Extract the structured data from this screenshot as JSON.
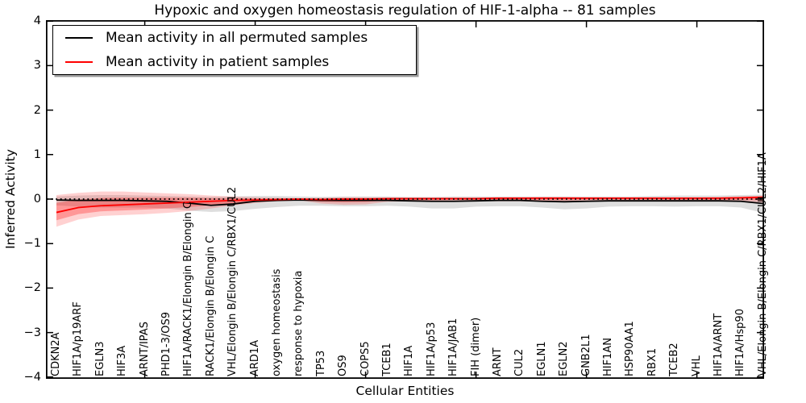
{
  "title": "Hypoxic and oxygen homeostasis regulation of HIF-1-alpha -- 81 samples",
  "legend": {
    "items": [
      {
        "label": "Mean activity in all permuted samples",
        "color": "#000000"
      },
      {
        "label": "Mean activity in patient samples",
        "color": "#ff0000"
      }
    ],
    "position": "upper left"
  },
  "chart_data": {
    "type": "line",
    "title": "Hypoxic and oxygen homeostasis regulation of HIF-1-alpha -- 81 samples",
    "xlabel": "Cellular Entities",
    "ylabel": "Inferred Activity",
    "ylim": [
      -4,
      4
    ],
    "yticks": [
      4,
      3,
      2,
      1,
      0,
      -1,
      -2,
      -3,
      -4
    ],
    "grid": false,
    "zero_line": {
      "style": "dotted",
      "color": "#000000",
      "y": 0
    },
    "categories": [
      "CDKN2A",
      "HIF1A/p19ARF",
      "EGLN3",
      "HIF3A",
      "ARNT/IPAS",
      "PHD1-3/OS9",
      "HIF1A/RACK1/Elongin B/Elongin C",
      "RACK1/Elongin B/Elongin C",
      "VHL/Elongin B/Elongin C/RBX1/CUL2",
      "ARD1A",
      "oxygen homeostasis",
      "response to hypoxia",
      "TP53",
      "OS9",
      "COPS5",
      "TCEB1",
      "HIF1A",
      "HIF1A/p53",
      "HIF1A/JAB1",
      "FIH (dimer)",
      "ARNT",
      "CUL2",
      "EGLN1",
      "EGLN2",
      "GNB2L1",
      "HIF1AN",
      "HSP90AA1",
      "RBX1",
      "TCEB2",
      "VHL",
      "HIF1A/ARNT",
      "HIF1A/Hsp90",
      "VHL/Elongin B/Elongin C/RBX1/CUL2/HIF1A"
    ],
    "top_tick_indices": [
      4,
      9,
      14,
      19,
      24,
      29
    ],
    "series": [
      {
        "name": "Mean activity in all permuted samples",
        "color": "#000000",
        "band_color": "rgba(0,0,0,0.13)",
        "values": [
          -0.02,
          -0.03,
          -0.03,
          -0.03,
          -0.04,
          -0.05,
          -0.09,
          -0.14,
          -0.11,
          -0.05,
          -0.03,
          -0.02,
          -0.03,
          -0.03,
          -0.03,
          -0.03,
          -0.04,
          -0.05,
          -0.05,
          -0.04,
          -0.03,
          -0.03,
          -0.05,
          -0.06,
          -0.05,
          -0.04,
          -0.04,
          -0.04,
          -0.04,
          -0.04,
          -0.04,
          -0.05,
          -0.1
        ],
        "band_upper": [
          0.06,
          0.08,
          0.09,
          0.09,
          0.08,
          0.07,
          0.06,
          0.05,
          0.06,
          0.07,
          0.07,
          0.06,
          0.05,
          0.06,
          0.06,
          0.06,
          0.05,
          0.05,
          0.06,
          0.06,
          0.06,
          0.06,
          0.06,
          0.06,
          0.06,
          0.06,
          0.06,
          0.07,
          0.08,
          0.08,
          0.08,
          0.09,
          0.1
        ],
        "band_lower": [
          -0.14,
          -0.17,
          -0.19,
          -0.19,
          -0.19,
          -0.21,
          -0.26,
          -0.29,
          -0.27,
          -0.22,
          -0.18,
          -0.15,
          -0.15,
          -0.16,
          -0.16,
          -0.15,
          -0.17,
          -0.21,
          -0.21,
          -0.17,
          -0.16,
          -0.16,
          -0.19,
          -0.23,
          -0.21,
          -0.17,
          -0.16,
          -0.16,
          -0.17,
          -0.16,
          -0.16,
          -0.19,
          -0.31
        ]
      },
      {
        "name": "Mean activity in patient samples",
        "color": "#ff0000",
        "band_color": "rgba(255,0,0,0.18)",
        "band_inner_color": "rgba(255,0,0,0.28)",
        "values": [
          -0.3,
          -0.19,
          -0.15,
          -0.13,
          -0.11,
          -0.09,
          -0.07,
          -0.05,
          -0.03,
          -0.02,
          -0.01,
          0.0,
          -0.01,
          0.0,
          0.0,
          0.01,
          0.01,
          0.01,
          0.01,
          0.01,
          0.02,
          0.02,
          0.02,
          0.02,
          0.02,
          0.02,
          0.02,
          0.02,
          0.02,
          0.02,
          0.02,
          0.03,
          0.04
        ],
        "band_upper": [
          0.09,
          0.14,
          0.17,
          0.17,
          0.15,
          0.13,
          0.11,
          0.08,
          0.06,
          0.04,
          0.03,
          0.02,
          0.03,
          0.04,
          0.04,
          0.03,
          0.03,
          0.03,
          0.03,
          0.03,
          0.04,
          0.04,
          0.05,
          0.05,
          0.04,
          0.04,
          0.04,
          0.04,
          0.04,
          0.04,
          0.05,
          0.06,
          0.08
        ],
        "band_lower": [
          -0.62,
          -0.46,
          -0.38,
          -0.36,
          -0.34,
          -0.31,
          -0.27,
          -0.21,
          -0.14,
          -0.09,
          -0.05,
          -0.03,
          -0.1,
          -0.13,
          -0.12,
          -0.06,
          -0.05,
          -0.05,
          -0.04,
          -0.04,
          -0.05,
          -0.05,
          -0.06,
          -0.06,
          -0.05,
          -0.04,
          -0.04,
          -0.04,
          -0.05,
          -0.05,
          -0.05,
          -0.06,
          -0.08
        ]
      }
    ]
  }
}
